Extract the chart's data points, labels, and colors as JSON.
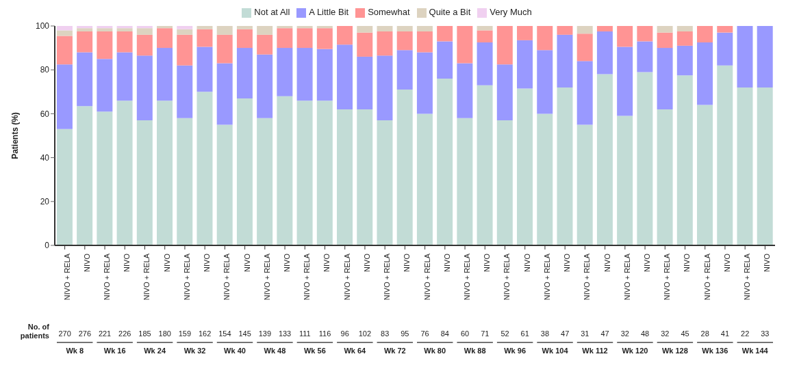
{
  "chart_data": {
    "type": "bar",
    "stacked": true,
    "ylabel": "Patients (%)",
    "ylim": [
      0,
      100
    ],
    "yticks": [
      0,
      20,
      40,
      60,
      80,
      100
    ],
    "grid": false,
    "legend": "top",
    "categories": [
      "NIVO + RELA",
      "NIVO",
      "NIVO + RELA",
      "NIVO",
      "NIVO + RELA",
      "NIVO",
      "NIVO + RELA",
      "NIVO",
      "NIVO + RELA",
      "NIVO",
      "NIVO + RELA",
      "NIVO",
      "NIVO + RELA",
      "NIVO",
      "NIVO + RELA",
      "NIVO",
      "NIVO + RELA",
      "NIVO",
      "NIVO + RELA",
      "NIVO",
      "NIVO + RELA",
      "NIVO",
      "NIVO + RELA",
      "NIVO",
      "NIVO + RELA",
      "NIVO",
      "NIVO + RELA",
      "NIVO",
      "NIVO + RELA",
      "NIVO",
      "NIVO + RELA",
      "NIVO",
      "NIVO + RELA",
      "NIVO",
      "NIVO + RELA",
      "NIVO"
    ],
    "series": [
      {
        "name": "Not at All",
        "color": "#c2dcd6",
        "values": [
          53,
          63.5,
          61,
          66,
          57,
          66,
          58,
          70,
          55,
          67,
          58,
          68,
          66,
          66,
          62,
          62,
          57,
          71,
          60,
          76,
          58,
          73,
          57,
          71.5,
          60,
          72,
          55,
          78,
          59,
          79,
          62,
          77.5,
          64,
          82,
          72,
          72
        ]
      },
      {
        "name": "A Little Bit",
        "color": "#9999ff",
        "values": [
          29.5,
          24.5,
          24,
          22,
          29.5,
          24,
          24,
          20.5,
          28,
          23,
          29,
          22,
          24,
          23.5,
          29.5,
          24,
          29.5,
          18,
          28,
          17,
          25,
          19.5,
          25.5,
          22,
          29,
          24,
          29,
          19.5,
          31.5,
          14,
          28,
          13.5,
          28.5,
          15,
          28,
          28
        ]
      },
      {
        "name": "Somewhat",
        "color": "#ff9494",
        "values": [
          13,
          9.5,
          12.5,
          9.5,
          9.5,
          9,
          14,
          8,
          13,
          8.5,
          9,
          9,
          9,
          9.5,
          8.5,
          11,
          11,
          8.5,
          9.5,
          7,
          17,
          5.5,
          17.5,
          6.5,
          11,
          4,
          12.5,
          2.5,
          9.5,
          7,
          7,
          6.5,
          7.5,
          3,
          0,
          0
        ]
      },
      {
        "name": "Quite a Bit",
        "color": "#ddd3c0",
        "values": [
          2.5,
          1.5,
          1.5,
          1.5,
          3,
          1,
          2.5,
          1.5,
          4,
          1.5,
          4,
          1,
          1,
          1,
          0,
          3,
          2.5,
          2.5,
          2.5,
          0,
          0,
          2,
          0,
          0,
          0,
          0,
          3.5,
          0,
          0,
          0,
          3,
          2.5,
          0,
          0,
          0,
          0
        ]
      },
      {
        "name": "Very Much",
        "color": "#f0d0f0",
        "values": [
          2,
          1,
          1,
          1,
          1,
          null,
          1.5,
          null,
          0,
          0,
          0,
          0,
          0,
          0,
          0,
          0,
          0,
          0,
          0,
          0,
          0,
          0,
          0,
          0,
          0,
          0,
          0,
          0,
          0,
          0,
          0,
          0,
          0,
          0,
          0,
          0
        ]
      }
    ],
    "annotations": [
      "No. of patients",
      "270",
      "276",
      "221",
      "226",
      "185",
      "180",
      "159",
      "162",
      "154",
      "145",
      "139",
      "133",
      "111",
      "116",
      "96",
      "102",
      "83",
      "95",
      "76",
      "84",
      "60",
      "71",
      "52",
      "61",
      "38",
      "47",
      "31",
      "47",
      "32",
      "48",
      "32",
      "45",
      "28",
      "41",
      "22",
      "33",
      "Wk 8",
      "Wk 16",
      "Wk 24",
      "Wk 32",
      "Wk 40",
      "Wk 48",
      "Wk 56",
      "Wk 64",
      "Wk 72",
      "Wk 80",
      "Wk 88",
      "Wk 96",
      "Wk 104",
      "Wk 112",
      "Wk 120",
      "Wk 128",
      "Wk 136",
      "Wk 144"
    ]
  }
}
